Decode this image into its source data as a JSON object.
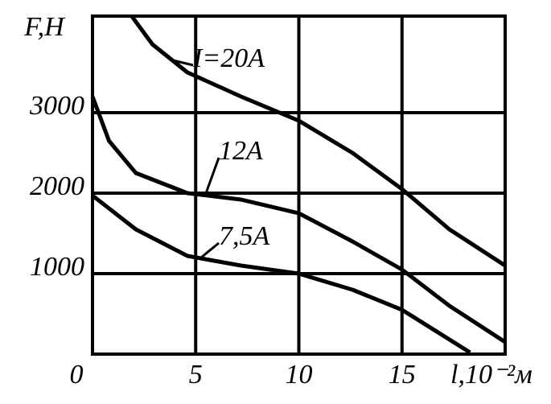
{
  "chart_data": {
    "type": "line",
    "y_label": "F,H",
    "x_label": "l,10⁻²м",
    "xlim": [
      0,
      20
    ],
    "xticks": [
      0,
      5,
      10,
      15
    ],
    "ylim": [
      0,
      4200
    ],
    "yticks": [
      1000,
      2000,
      3000
    ],
    "grid": true,
    "series": [
      {
        "name": "I=20A",
        "color": "#000000",
        "x": [
          1.9,
          2.9,
          4.6,
          7.2,
          10.0,
          12.6,
          15.0,
          17.3,
          20
        ],
        "values": [
          4200,
          3850,
          3500,
          3200,
          2900,
          2500,
          2050,
          1550,
          1100
        ]
      },
      {
        "name": "12A",
        "color": "#000000",
        "x": [
          0,
          0.8,
          2.1,
          4.6,
          7.2,
          10.0,
          12.6,
          15.0,
          17.3,
          20
        ],
        "values": [
          3200,
          2650,
          2250,
          2000,
          1920,
          1750,
          1400,
          1050,
          600,
          150
        ]
      },
      {
        "name": "7,5A",
        "color": "#000000",
        "x": [
          0,
          2.1,
          4.6,
          7.2,
          10.0,
          12.6,
          15.0,
          18.3
        ],
        "values": [
          1970,
          1550,
          1220,
          1100,
          1000,
          800,
          550,
          20
        ]
      }
    ]
  }
}
